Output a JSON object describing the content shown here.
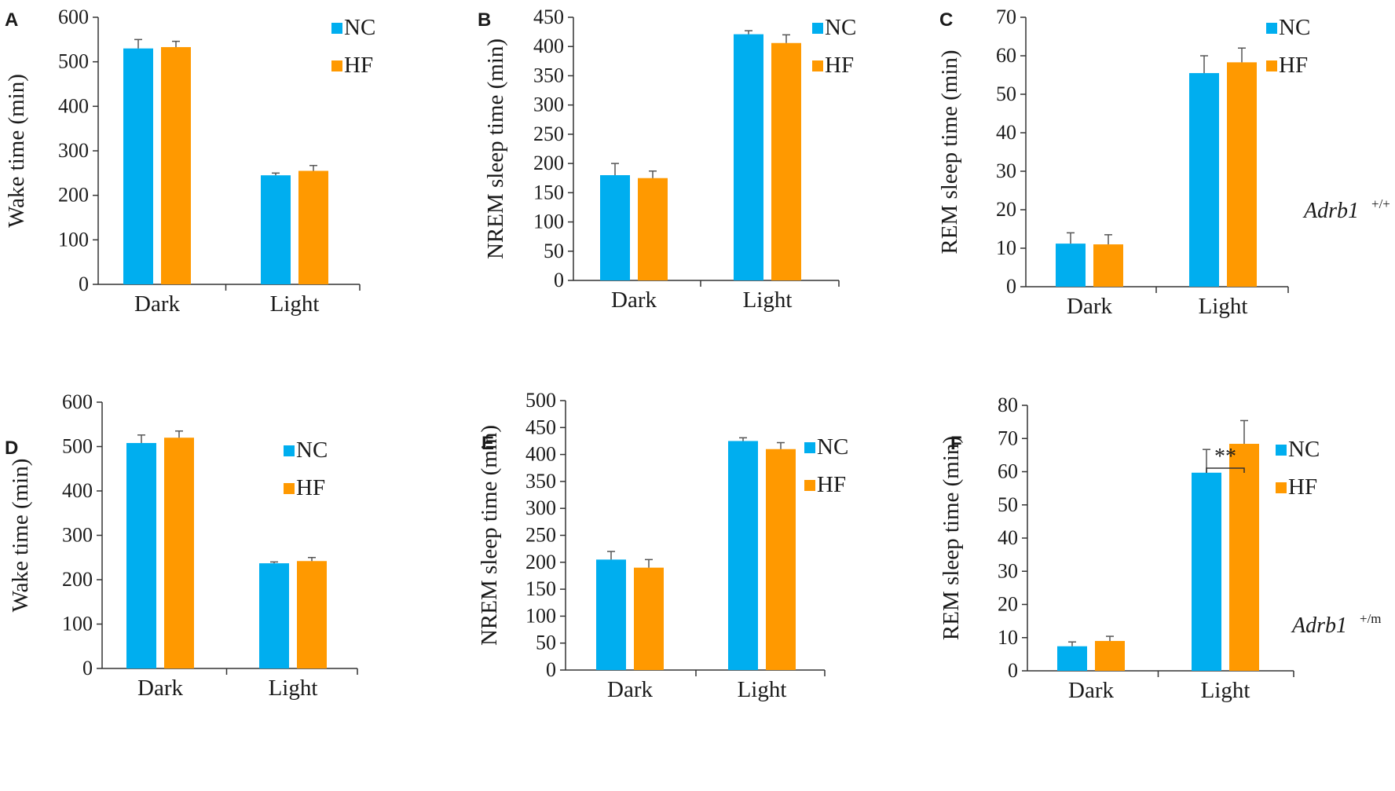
{
  "colors": {
    "NC": "#00aeef",
    "HF": "#ff9900",
    "axis": "#333333"
  },
  "genotype_labels": [
    {
      "base": "Adrb1",
      "sup": "+/+"
    },
    {
      "base": "Adrb1",
      "sup": "+/m"
    }
  ],
  "chart_data": [
    {
      "panel": "A",
      "type": "bar",
      "ylabel": "Wake time (min)",
      "categories": [
        "Dark",
        "Light"
      ],
      "ylim": [
        0,
        600
      ],
      "yticks": [
        0,
        100,
        200,
        300,
        400,
        500,
        600
      ],
      "series": [
        {
          "name": "NC",
          "values": [
            530,
            245
          ],
          "errors": [
            20,
            5
          ]
        },
        {
          "name": "HF",
          "values": [
            533,
            255
          ],
          "errors": [
            13,
            12
          ]
        }
      ]
    },
    {
      "panel": "B",
      "type": "bar",
      "ylabel": "NREM sleep time (min)",
      "categories": [
        "Dark",
        "Light"
      ],
      "ylim": [
        0,
        450
      ],
      "yticks": [
        0,
        50,
        100,
        150,
        200,
        250,
        300,
        350,
        400,
        450
      ],
      "series": [
        {
          "name": "NC",
          "values": [
            180,
            421
          ],
          "errors": [
            20,
            6
          ]
        },
        {
          "name": "HF",
          "values": [
            175,
            406
          ],
          "errors": [
            12,
            14
          ]
        }
      ]
    },
    {
      "panel": "C",
      "type": "bar",
      "ylabel": "REM sleep time (min)",
      "categories": [
        "Dark",
        "Light"
      ],
      "ylim": [
        0,
        70
      ],
      "yticks": [
        0,
        10,
        20,
        30,
        40,
        50,
        60,
        70
      ],
      "series": [
        {
          "name": "NC",
          "values": [
            11.2,
            55.5
          ],
          "errors": [
            2.8,
            4.5
          ]
        },
        {
          "name": "HF",
          "values": [
            11.0,
            58.3
          ],
          "errors": [
            2.5,
            3.7
          ]
        }
      ]
    },
    {
      "panel": "D",
      "type": "bar",
      "ylabel": "Wake time (min)",
      "categories": [
        "Dark",
        "Light"
      ],
      "ylim": [
        0,
        600
      ],
      "yticks": [
        0,
        100,
        200,
        300,
        400,
        500,
        600
      ],
      "series": [
        {
          "name": "NC",
          "values": [
            508,
            237
          ],
          "errors": [
            18,
            3
          ]
        },
        {
          "name": "HF",
          "values": [
            520,
            242
          ],
          "errors": [
            15,
            8
          ]
        }
      ]
    },
    {
      "panel": "E",
      "type": "bar",
      "ylabel": "NREM sleep time (min)",
      "categories": [
        "Dark",
        "Light"
      ],
      "ylim": [
        0,
        500
      ],
      "yticks": [
        0,
        50,
        100,
        150,
        200,
        250,
        300,
        350,
        400,
        450,
        500
      ],
      "series": [
        {
          "name": "NC",
          "values": [
            205,
            425
          ],
          "errors": [
            15,
            6
          ]
        },
        {
          "name": "HF",
          "values": [
            190,
            410
          ],
          "errors": [
            15,
            12
          ]
        }
      ]
    },
    {
      "panel": "F",
      "type": "bar",
      "ylabel": "REM sleep time (min)",
      "categories": [
        "Dark",
        "Light"
      ],
      "ylim": [
        0,
        80
      ],
      "yticks": [
        0,
        10,
        20,
        30,
        40,
        50,
        60,
        70,
        80
      ],
      "series": [
        {
          "name": "NC",
          "values": [
            7.4,
            59.7
          ],
          "errors": [
            1.3,
            7.0
          ]
        },
        {
          "name": "HF",
          "values": [
            9.0,
            68.4
          ],
          "errors": [
            1.4,
            7.0
          ]
        }
      ],
      "annotation": {
        "text": "**",
        "category": "Light"
      }
    }
  ]
}
